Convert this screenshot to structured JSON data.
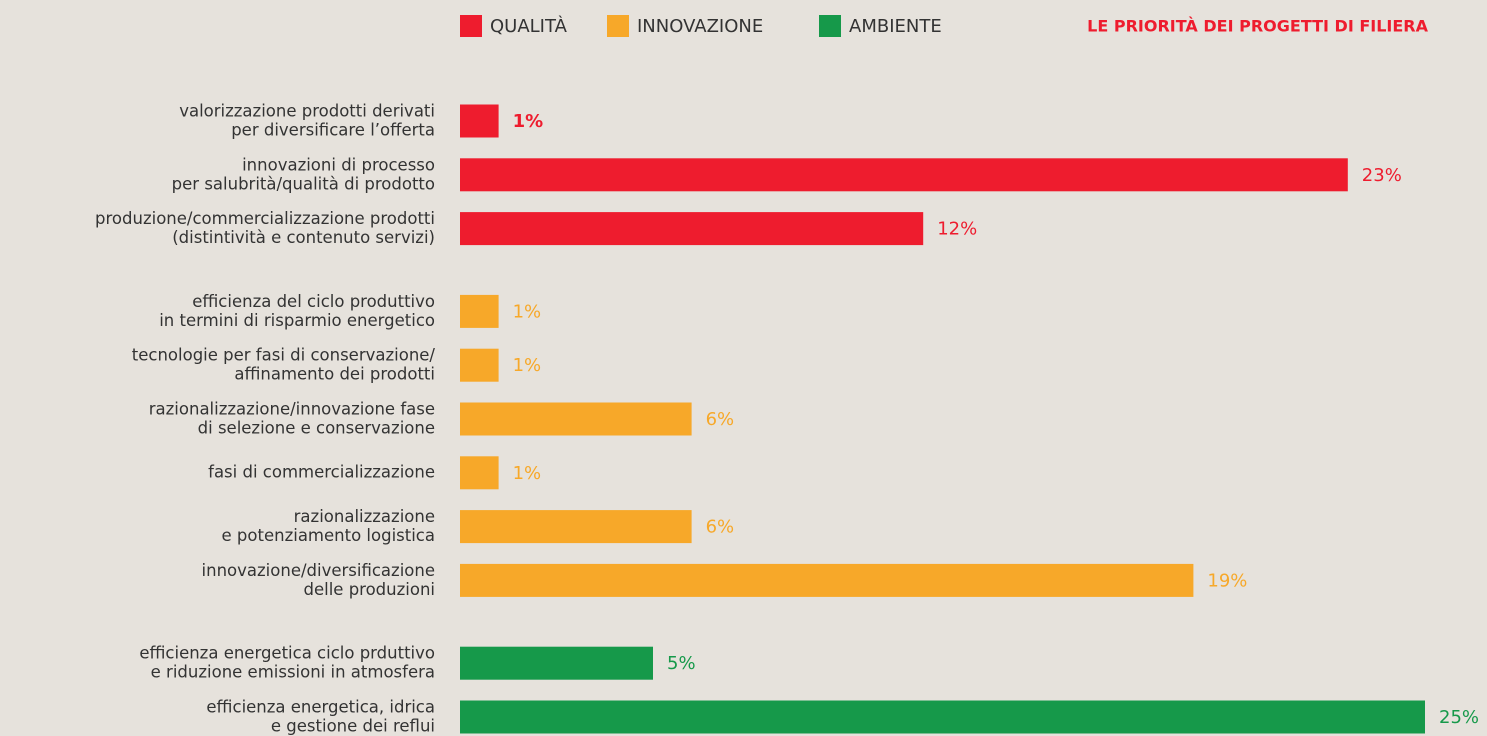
{
  "chart_data": {
    "type": "hbar",
    "title": "LE PRIORITÀ DEI PROGETTI DI FILIERA",
    "xlim": [
      0,
      25
    ],
    "legend": "top",
    "series": [
      {
        "name": "QUALITÀ",
        "color": "#ee1c2e",
        "categories": [
          [
            "valorizzazione prodotti derivati",
            "per diversificare l’offerta"
          ],
          [
            "innovazioni di processo",
            "per salubrità/qualità di prodotto"
          ],
          [
            "produzione/commercializzazione prodotti",
            "(distintività e contenuto servizi)"
          ]
        ],
        "values": [
          1,
          23,
          12
        ],
        "value_labels": [
          "1%",
          "23%",
          "12%"
        ]
      },
      {
        "name": "INNOVAZIONE",
        "color": "#f7a829",
        "categories": [
          [
            "efficienza del ciclo produttivo",
            "in termini di risparmio energetico"
          ],
          [
            "tecnologie per fasi di conservazione/",
            "affinamento dei prodotti"
          ],
          [
            "razionalizzazione/innovazione fase",
            "di selezione e conservazione"
          ],
          [
            "fasi di commercializzazione"
          ],
          [
            "razionalizzazione",
            "e potenziamento logistica"
          ],
          [
            "innovazione/diversificazione",
            "delle produzioni"
          ]
        ],
        "values": [
          1,
          1,
          6,
          1,
          6,
          19
        ],
        "value_labels": [
          "1%",
          "1%",
          "6%",
          "1%",
          "6%",
          "19%"
        ]
      },
      {
        "name": "AMBIENTE",
        "color": "#16994a",
        "categories": [
          [
            "efficienza energetica ciclo prduttivo",
            "e riduzione emissioni in atmosfera"
          ],
          [
            "efficienza energetica, idrica",
            "e gestione dei reflui"
          ]
        ],
        "values": [
          5,
          25
        ],
        "value_labels": [
          "5%",
          "25%"
        ]
      }
    ]
  }
}
